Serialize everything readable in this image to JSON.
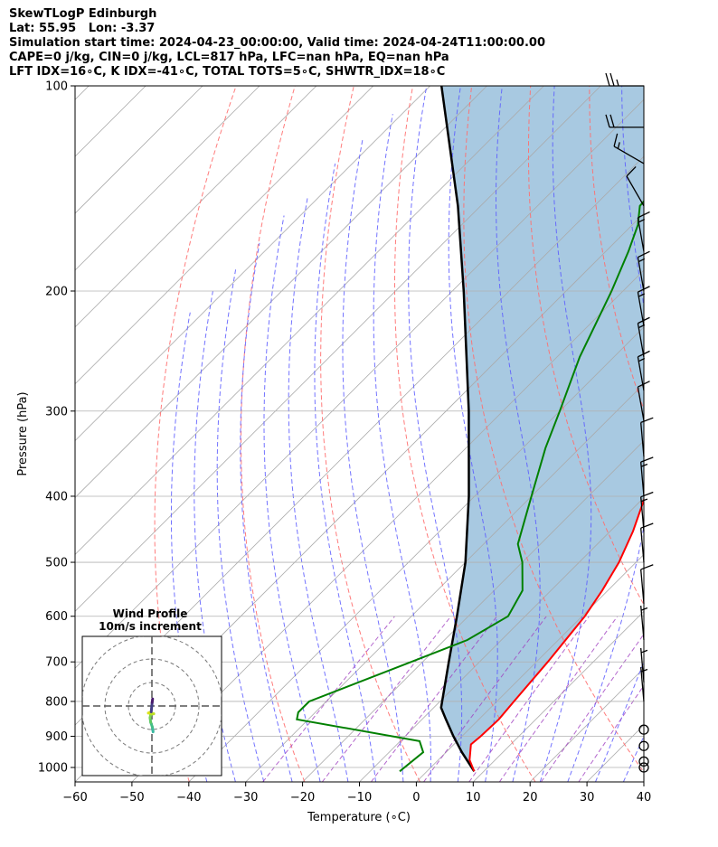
{
  "title_lines": [
    "SkewTLogP Edinburgh",
    "Lat: 55.95   Lon: -3.37",
    "Simulation start time: 2024-04-23_00:00:00, Valid time: 2024-04-24T11:00:00.00",
    "CAPE=0 j/kg, CIN=0 j/kg, LCL=817 hPa, LFC=nan hPa, EQ=nan hPa",
    "LFT IDX=16∘C, K IDX=-41∘C, TOTAL TOTS=5∘C, SHWTR_IDX=18∘C"
  ],
  "chart_data": {
    "type": "line",
    "xlabel": "Temperature (∘C)",
    "ylabel": "Pressure (hPa)",
    "xlim": [
      -60,
      40
    ],
    "ylim": [
      1050,
      100
    ],
    "yscale": "log",
    "x_ticks": [
      "−60",
      "−50",
      "−40",
      "−30",
      "−20",
      "−10",
      "0",
      "10",
      "20",
      "30",
      "40"
    ],
    "y_ticks": [
      "100",
      "200",
      "300",
      "400",
      "500",
      "600",
      "700",
      "800",
      "900",
      "1000"
    ],
    "colors": {
      "temperature": "#ff0000",
      "dewpoint": "#008000",
      "parcel": "#000000",
      "cape_fill": "#a3c6df",
      "dry_adiabats": "#ff6e6e",
      "moist_adiabats": "#5a5aff",
      "mixing_ratio": "#a040c0",
      "isotherms": "#aaaaaa"
    },
    "series": [],
    "temperature_profile": [
      {
        "p": 1013,
        "t": 8.3
      },
      {
        "p": 975,
        "t": 5.5
      },
      {
        "p": 925,
        "t": 3.0
      },
      {
        "p": 900,
        "t": 3.3
      },
      {
        "p": 850,
        "t": 3.5
      },
      {
        "p": 800,
        "t": 3.0
      },
      {
        "p": 700,
        "t": 2.0
      },
      {
        "p": 600,
        "t": 0.5
      },
      {
        "p": 550,
        "t": -1.0
      },
      {
        "p": 500,
        "t": -3.0
      },
      {
        "p": 450,
        "t": -6.0
      },
      {
        "p": 400,
        "t": -10.0
      },
      {
        "p": 350,
        "t": -15.5
      },
      {
        "p": 300,
        "t": -21.0
      },
      {
        "p": 270,
        "t": -25.0
      },
      {
        "p": 250,
        "t": -29.0
      },
      {
        "p": 235,
        "t": -32.5
      },
      {
        "p": 220,
        "t": -36.0
      },
      {
        "p": 200,
        "t": -40.0
      },
      {
        "p": 185,
        "t": -43.0
      },
      {
        "p": 170,
        "t": -45.0
      },
      {
        "p": 160,
        "t": -46.5
      },
      {
        "p": 150,
        "t": -48.0
      },
      {
        "p": 135,
        "t": -50.5
      },
      {
        "p": 120,
        "t": -52.5
      },
      {
        "p": 110,
        "t": -53.0
      },
      {
        "p": 100,
        "t": -53.0
      }
    ],
    "dewpoint_profile": [
      {
        "p": 1013,
        "t": -4.8
      },
      {
        "p": 950,
        "t": -4.0
      },
      {
        "p": 915,
        "t": -6.6
      },
      {
        "p": 850,
        "t": -32.0
      },
      {
        "p": 830,
        "t": -33.0
      },
      {
        "p": 800,
        "t": -33.0
      },
      {
        "p": 700,
        "t": -22.0
      },
      {
        "p": 650,
        "t": -16.0
      },
      {
        "p": 600,
        "t": -13.0
      },
      {
        "p": 550,
        "t": -15.0
      },
      {
        "p": 500,
        "t": -20.0
      },
      {
        "p": 470,
        "t": -24.0
      },
      {
        "p": 400,
        "t": -30.0
      },
      {
        "p": 340,
        "t": -36.0
      },
      {
        "p": 300,
        "t": -40.0
      },
      {
        "p": 250,
        "t": -46.0
      },
      {
        "p": 200,
        "t": -52.0
      },
      {
        "p": 175,
        "t": -56.0
      },
      {
        "p": 160,
        "t": -59.0
      },
      {
        "p": 150,
        "t": -62.0
      },
      {
        "p": 100,
        "t": -65.0
      }
    ],
    "parcel_profile": [
      {
        "p": 1013,
        "t": 8.3
      },
      {
        "p": 950,
        "t": 2.8
      },
      {
        "p": 900,
        "t": -1.5
      },
      {
        "p": 850,
        "t": -5.8
      },
      {
        "p": 817,
        "t": -8.7
      },
      {
        "p": 700,
        "t": -15.4
      },
      {
        "p": 600,
        "t": -22.0
      },
      {
        "p": 500,
        "t": -30.0
      },
      {
        "p": 400,
        "t": -41.0
      },
      {
        "p": 300,
        "t": -56.0
      },
      {
        "p": 200,
        "t": -78.0
      },
      {
        "p": 150,
        "t": -94.0
      },
      {
        "p": 100,
        "t": -118.0
      }
    ],
    "wind_barbs": [
      {
        "p": 100,
        "speed_kt": 25,
        "dir_deg": 270
      },
      {
        "p": 115,
        "speed_kt": 20,
        "dir_deg": 270
      },
      {
        "p": 130,
        "speed_kt": 15,
        "dir_deg": 300
      },
      {
        "p": 150,
        "speed_kt": 10,
        "dir_deg": 330
      },
      {
        "p": 175,
        "speed_kt": 15,
        "dir_deg": 350
      },
      {
        "p": 200,
        "speed_kt": 15,
        "dir_deg": 350
      },
      {
        "p": 225,
        "speed_kt": 15,
        "dir_deg": 350
      },
      {
        "p": 250,
        "speed_kt": 15,
        "dir_deg": 350
      },
      {
        "p": 280,
        "speed_kt": 15,
        "dir_deg": 350
      },
      {
        "p": 310,
        "speed_kt": 10,
        "dir_deg": 350
      },
      {
        "p": 350,
        "speed_kt": 10,
        "dir_deg": 355
      },
      {
        "p": 400,
        "speed_kt": 15,
        "dir_deg": 355
      },
      {
        "p": 450,
        "speed_kt": 15,
        "dir_deg": 355
      },
      {
        "p": 500,
        "speed_kt": 10,
        "dir_deg": 355
      },
      {
        "p": 575,
        "speed_kt": 10,
        "dir_deg": 355
      },
      {
        "p": 650,
        "speed_kt": 5,
        "dir_deg": 355
      },
      {
        "p": 750,
        "speed_kt": 5,
        "dir_deg": 355
      },
      {
        "p": 800,
        "speed_kt": 5,
        "dir_deg": 355
      },
      {
        "p": 880,
        "speed_kt": 0,
        "dir_deg": 0
      },
      {
        "p": 930,
        "speed_kt": 0,
        "dir_deg": 0
      },
      {
        "p": 980,
        "speed_kt": 0,
        "dir_deg": 0
      },
      {
        "p": 1000,
        "speed_kt": 0,
        "dir_deg": 0
      }
    ],
    "grid": true,
    "inset": {
      "title_lines": [
        "Wind Profile",
        "10m/s increment"
      ],
      "ring_increment_ms": 10,
      "hodograph": [
        {
          "u": 0.5,
          "v": -11,
          "c": "#3bb9a0"
        },
        {
          "u": 0.2,
          "v": -9,
          "c": "#45bf87"
        },
        {
          "u": -0.5,
          "v": -7,
          "c": "#5dc863"
        },
        {
          "u": -0.8,
          "v": -5,
          "c": "#7ad151"
        },
        {
          "u": -0.5,
          "v": -3.5,
          "c": "#9fda3a"
        },
        {
          "u": 0.8,
          "v": -3.3,
          "c": "#bfdf25"
        },
        {
          "u": -1.5,
          "v": -3.0,
          "c": "#dde318"
        },
        {
          "u": -0.3,
          "v": -2.5,
          "c": "#433e85"
        },
        {
          "u": 0.1,
          "v": 1.5,
          "c": "#481a6c"
        },
        {
          "u": 0.3,
          "v": 3.0,
          "c": "#440154"
        }
      ]
    }
  }
}
